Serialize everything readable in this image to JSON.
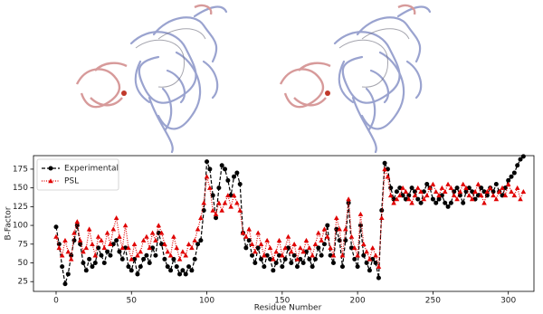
{
  "chart_data": {
    "type": "line",
    "xlabel": "Residue Number",
    "ylabel": "B-Factor",
    "legend": "upper left",
    "xlim": [
      -15,
      317
    ],
    "ylim": [
      12,
      193
    ],
    "xticks": [
      0,
      50,
      100,
      150,
      200,
      250,
      300
    ],
    "yticks": [
      25,
      50,
      75,
      100,
      125,
      150,
      175
    ],
    "x": [
      0,
      2,
      4,
      6,
      8,
      10,
      12,
      14,
      16,
      18,
      20,
      22,
      24,
      26,
      28,
      30,
      32,
      34,
      36,
      38,
      40,
      42,
      44,
      46,
      48,
      50,
      52,
      54,
      56,
      58,
      60,
      62,
      64,
      66,
      68,
      70,
      72,
      74,
      76,
      78,
      80,
      82,
      84,
      86,
      88,
      90,
      92,
      94,
      96,
      98,
      100,
      102,
      104,
      106,
      108,
      110,
      112,
      114,
      116,
      118,
      120,
      122,
      124,
      126,
      128,
      130,
      132,
      134,
      136,
      138,
      140,
      142,
      144,
      146,
      148,
      150,
      152,
      154,
      156,
      158,
      160,
      162,
      164,
      166,
      168,
      170,
      172,
      174,
      176,
      178,
      180,
      182,
      184,
      186,
      188,
      190,
      192,
      194,
      196,
      198,
      200,
      202,
      204,
      206,
      208,
      210,
      212,
      214,
      216,
      218,
      220,
      222,
      224,
      226,
      228,
      230,
      232,
      234,
      236,
      238,
      240,
      242,
      244,
      246,
      248,
      250,
      252,
      254,
      256,
      258,
      260,
      262,
      264,
      266,
      268,
      270,
      272,
      274,
      276,
      278,
      280,
      282,
      284,
      286,
      288,
      290,
      292,
      294,
      296,
      298,
      300,
      302,
      304,
      306,
      308,
      310
    ],
    "series": [
      {
        "name": "Experimental",
        "color": "#000000",
        "linestyle": "dashed",
        "marker": "circle",
        "values": [
          98,
          75,
          45,
          22,
          35,
          60,
          80,
          100,
          75,
          50,
          40,
          55,
          45,
          50,
          70,
          60,
          50,
          65,
          60,
          75,
          80,
          65,
          55,
          70,
          45,
          40,
          55,
          35,
          45,
          55,
          60,
          50,
          70,
          60,
          90,
          75,
          55,
          45,
          40,
          55,
          45,
          35,
          40,
          35,
          45,
          40,
          55,
          75,
          80,
          120,
          185,
          175,
          140,
          110,
          150,
          180,
          175,
          160,
          140,
          165,
          170,
          155,
          90,
          70,
          80,
          60,
          50,
          70,
          55,
          45,
          60,
          55,
          40,
          50,
          60,
          45,
          55,
          70,
          50,
          60,
          45,
          55,
          50,
          65,
          55,
          45,
          55,
          70,
          60,
          75,
          100,
          60,
          50,
          95,
          80,
          45,
          80,
          130,
          70,
          55,
          45,
          100,
          60,
          50,
          40,
          55,
          50,
          30,
          120,
          183,
          175,
          150,
          135,
          145,
          150,
          140,
          135,
          140,
          150,
          145,
          135,
          130,
          145,
          155,
          150,
          135,
          130,
          135,
          140,
          130,
          125,
          130,
          145,
          150,
          140,
          130,
          145,
          150,
          145,
          135,
          140,
          150,
          145,
          140,
          150,
          145,
          155,
          145,
          140,
          150,
          160,
          165,
          170,
          180,
          188,
          192
        ]
      },
      {
        "name": "PSL",
        "color": "#e00000",
        "linestyle": "dotted",
        "marker": "triangle",
        "values": [
          85,
          70,
          60,
          80,
          65,
          55,
          90,
          105,
          80,
          65,
          70,
          95,
          75,
          60,
          85,
          80,
          70,
          90,
          75,
          95,
          110,
          85,
          70,
          100,
          70,
          55,
          75,
          60,
          65,
          80,
          85,
          70,
          90,
          80,
          100,
          90,
          75,
          65,
          60,
          85,
          70,
          55,
          65,
          60,
          75,
          70,
          80,
          95,
          110,
          130,
          165,
          150,
          120,
          115,
          130,
          120,
          130,
          140,
          125,
          140,
          130,
          120,
          90,
          85,
          95,
          75,
          65,
          90,
          75,
          60,
          80,
          70,
          55,
          65,
          80,
          60,
          70,
          85,
          65,
          75,
          55,
          70,
          65,
          80,
          70,
          60,
          75,
          90,
          80,
          95,
          85,
          70,
          60,
          110,
          95,
          60,
          95,
          135,
          85,
          70,
          60,
          115,
          75,
          65,
          55,
          70,
          60,
          45,
          110,
          175,
          165,
          140,
          130,
          135,
          140,
          150,
          145,
          135,
          130,
          140,
          150,
          145,
          135,
          140,
          150,
          155,
          145,
          140,
          150,
          145,
          155,
          150,
          140,
          135,
          145,
          155,
          150,
          140,
          135,
          145,
          155,
          140,
          130,
          145,
          150,
          140,
          135,
          145,
          150,
          140,
          155,
          145,
          140,
          150,
          135,
          145
        ]
      }
    ]
  }
}
